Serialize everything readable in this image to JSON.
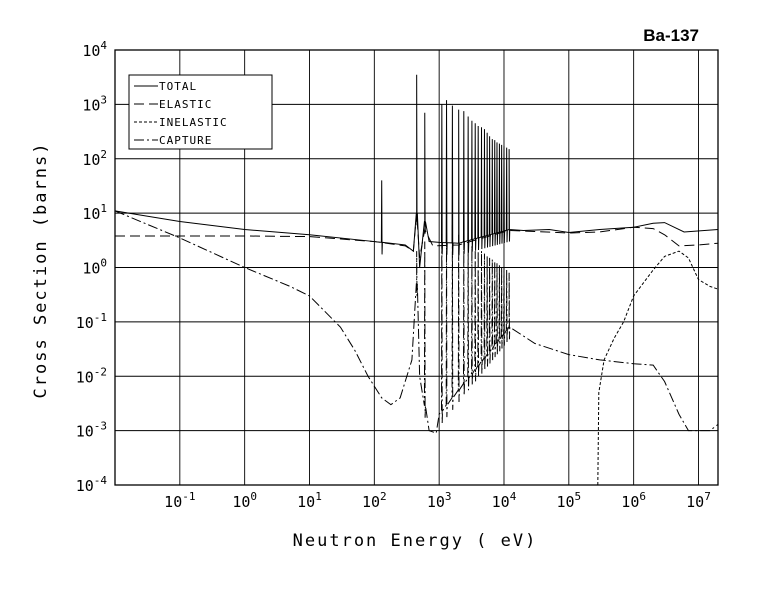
{
  "chart_data": {
    "type": "line",
    "title": "Ba-137",
    "xlabel": "Neutron Energy ( eV)",
    "ylabel": "Cross Section (barns)",
    "xscale": "log",
    "yscale": "log",
    "xlim": [
      0.01,
      20000000
    ],
    "ylim": [
      0.0001,
      10000
    ],
    "grid": true,
    "legend_position": "top-left",
    "x_ticks": [
      {
        "base": "10",
        "exp": "-1",
        "value": 0.1
      },
      {
        "base": "10",
        "exp": "0",
        "value": 1
      },
      {
        "base": "10",
        "exp": "1",
        "value": 10
      },
      {
        "base": "10",
        "exp": "2",
        "value": 100
      },
      {
        "base": "10",
        "exp": "3",
        "value": 1000
      },
      {
        "base": "10",
        "exp": "4",
        "value": 10000
      },
      {
        "base": "10",
        "exp": "5",
        "value": 100000
      },
      {
        "base": "10",
        "exp": "6",
        "value": 1000000
      },
      {
        "base": "10",
        "exp": "7",
        "value": 10000000
      }
    ],
    "y_ticks": [
      {
        "base": "10",
        "exp": "-4",
        "value": 0.0001
      },
      {
        "base": "10",
        "exp": "-3",
        "value": 0.001
      },
      {
        "base": "10",
        "exp": "-2",
        "value": 0.01
      },
      {
        "base": "10",
        "exp": "-1",
        "value": 0.1
      },
      {
        "base": "10",
        "exp": "0",
        "value": 1
      },
      {
        "base": "10",
        "exp": "1",
        "value": 10
      },
      {
        "base": "10",
        "exp": "2",
        "value": 100
      },
      {
        "base": "10",
        "exp": "3",
        "value": 1000
      },
      {
        "base": "10",
        "exp": "4",
        "value": 10000
      }
    ],
    "series": [
      {
        "name": "TOTAL",
        "dash": "solid",
        "points": [
          [
            0.01,
            11
          ],
          [
            0.1,
            7
          ],
          [
            1,
            5
          ],
          [
            10,
            4
          ],
          [
            100,
            3
          ],
          [
            300,
            2.6
          ],
          [
            400,
            2
          ],
          [
            450,
            10
          ],
          [
            500,
            1
          ],
          [
            600,
            7
          ],
          [
            700,
            3
          ],
          [
            1000,
            2.9
          ],
          [
            2000,
            2.8
          ],
          [
            12000,
            5
          ],
          [
            20000,
            4.8
          ],
          [
            50000,
            5
          ],
          [
            100000,
            4.4
          ],
          [
            300000,
            5
          ],
          [
            1000000,
            5.5
          ],
          [
            2000000,
            6.5
          ],
          [
            3000000,
            6.7
          ],
          [
            6000000,
            4.5
          ],
          [
            20000000,
            5
          ]
        ],
        "resonances": [
          [
            130,
            40
          ],
          [
            450,
            3500
          ],
          [
            600,
            700
          ],
          [
            1100,
            1000
          ],
          [
            1300,
            1200
          ],
          [
            1600,
            950
          ],
          [
            2000,
            800
          ],
          [
            2400,
            750
          ],
          [
            2800,
            600
          ],
          [
            3200,
            500
          ],
          [
            3600,
            450
          ],
          [
            4000,
            400
          ],
          [
            4500,
            380
          ],
          [
            5000,
            350
          ],
          [
            5500,
            300
          ],
          [
            6000,
            260
          ],
          [
            6600,
            230
          ],
          [
            7200,
            220
          ],
          [
            7800,
            200
          ],
          [
            8500,
            190
          ],
          [
            9200,
            180
          ],
          [
            10000,
            170
          ],
          [
            11000,
            160
          ],
          [
            12000,
            150
          ]
        ]
      },
      {
        "name": "ELASTIC",
        "dash": "long-dash",
        "points": [
          [
            0.01,
            3.8
          ],
          [
            1,
            3.8
          ],
          [
            10,
            3.7
          ],
          [
            100,
            3
          ],
          [
            300,
            2.5
          ],
          [
            400,
            2
          ],
          [
            450,
            10
          ],
          [
            500,
            1.5
          ],
          [
            600,
            5
          ],
          [
            800,
            2.5
          ],
          [
            2000,
            2.6
          ],
          [
            12000,
            4.8
          ],
          [
            30000,
            4.6
          ],
          [
            100000,
            4.3
          ],
          [
            300000,
            4.5
          ],
          [
            1000000,
            5.5
          ],
          [
            2000000,
            5.2
          ],
          [
            3000000,
            4
          ],
          [
            5000000,
            2.5
          ],
          [
            10000000,
            2.6
          ],
          [
            20000000,
            2.8
          ]
        ]
      },
      {
        "name": "INELASTIC",
        "dash": "short-dash",
        "points": [
          [
            280000,
            0.0001
          ],
          [
            290000,
            0.005
          ],
          [
            350000,
            0.02
          ],
          [
            500000,
            0.05
          ],
          [
            700000,
            0.1
          ],
          [
            1000000,
            0.3
          ],
          [
            2000000,
            0.9
          ],
          [
            3000000,
            1.6
          ],
          [
            5000000,
            2
          ],
          [
            7000000,
            1.5
          ],
          [
            10000000,
            0.6
          ],
          [
            15000000,
            0.45
          ],
          [
            20000000,
            0.4
          ]
        ]
      },
      {
        "name": "CAPTURE",
        "dash": "dash-dot",
        "points": [
          [
            0.01,
            11
          ],
          [
            0.1,
            3.5
          ],
          [
            1,
            1
          ],
          [
            5,
            0.45
          ],
          [
            10,
            0.3
          ],
          [
            30,
            0.08
          ],
          [
            50,
            0.03
          ],
          [
            80,
            0.01
          ],
          [
            130,
            0.004
          ],
          [
            180,
            0.003
          ],
          [
            250,
            0.004
          ],
          [
            380,
            0.02
          ],
          [
            450,
            0.5
          ],
          [
            500,
            0.01
          ],
          [
            700,
            0.001
          ],
          [
            900,
            0.0009
          ],
          [
            1000,
            0.002
          ],
          [
            12000,
            0.08
          ],
          [
            30000,
            0.04
          ],
          [
            100000,
            0.025
          ],
          [
            300000,
            0.02
          ],
          [
            1000000,
            0.017
          ],
          [
            2000000,
            0.016
          ],
          [
            3000000,
            0.008
          ],
          [
            5000000,
            0.002
          ],
          [
            7000000,
            0.001
          ],
          [
            15000000,
            0.001
          ],
          [
            20000000,
            0.0013
          ]
        ],
        "resonances": [
          [
            450,
            2
          ],
          [
            600,
            3
          ],
          [
            1100,
            8
          ],
          [
            1300,
            5
          ],
          [
            1600,
            6
          ],
          [
            2000,
            4
          ],
          [
            2400,
            3
          ],
          [
            2800,
            3
          ],
          [
            3200,
            2.5
          ],
          [
            3600,
            2
          ],
          [
            4000,
            2
          ],
          [
            4500,
            2
          ],
          [
            5000,
            1.8
          ],
          [
            5500,
            1.6
          ],
          [
            6000,
            1.5
          ],
          [
            6600,
            1.4
          ],
          [
            7200,
            1.3
          ],
          [
            7800,
            1.2
          ],
          [
            8500,
            1.1
          ],
          [
            9200,
            1
          ],
          [
            10000,
            1
          ],
          [
            11000,
            0.9
          ],
          [
            12000,
            0.8
          ]
        ]
      }
    ]
  }
}
